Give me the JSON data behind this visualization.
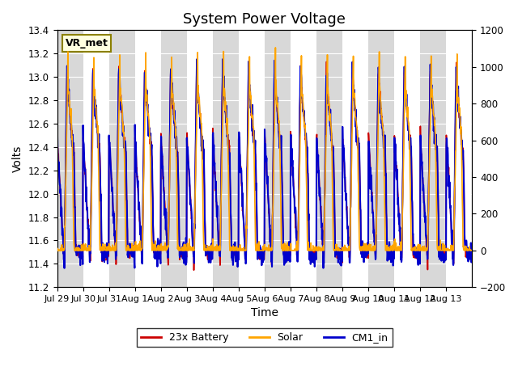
{
  "title": "System Power Voltage",
  "xlabel": "Time",
  "ylabel": "Volts",
  "left_ylim": [
    11.2,
    13.4
  ],
  "right_ylim": [
    -200,
    1200
  ],
  "left_yticks": [
    11.2,
    11.4,
    11.6,
    11.8,
    12.0,
    12.2,
    12.4,
    12.6,
    12.8,
    13.0,
    13.2,
    13.4
  ],
  "right_yticks": [
    -200,
    0,
    200,
    400,
    600,
    800,
    1000,
    1200
  ],
  "xtick_labels": [
    "Jul 29",
    "Jul 30",
    "Jul 31",
    "Aug 1",
    "Aug 2",
    "Aug 3",
    "Aug 4",
    "Aug 5",
    "Aug 6",
    "Aug 7",
    "Aug 8",
    "Aug 9",
    "Aug 10",
    "Aug 11",
    "Aug 12",
    "Aug 13"
  ],
  "line_colors": {
    "battery": "#CC0000",
    "solar": "#FFA500",
    "cm1": "#0000CC"
  },
  "line_widths": {
    "battery": 1.2,
    "solar": 1.2,
    "cm1": 1.5
  },
  "legend_labels": [
    "23x Battery",
    "Solar",
    "CM1_in"
  ],
  "vr_met_label": "VR_met",
  "background_color": "#ffffff",
  "plot_bg_color": "#f0f0f0",
  "band_color": "#d8d8d8",
  "n_days": 16,
  "pts_per_day": 96,
  "title_fontsize": 13,
  "axis_fontsize": 10,
  "tick_fontsize": 8.5
}
